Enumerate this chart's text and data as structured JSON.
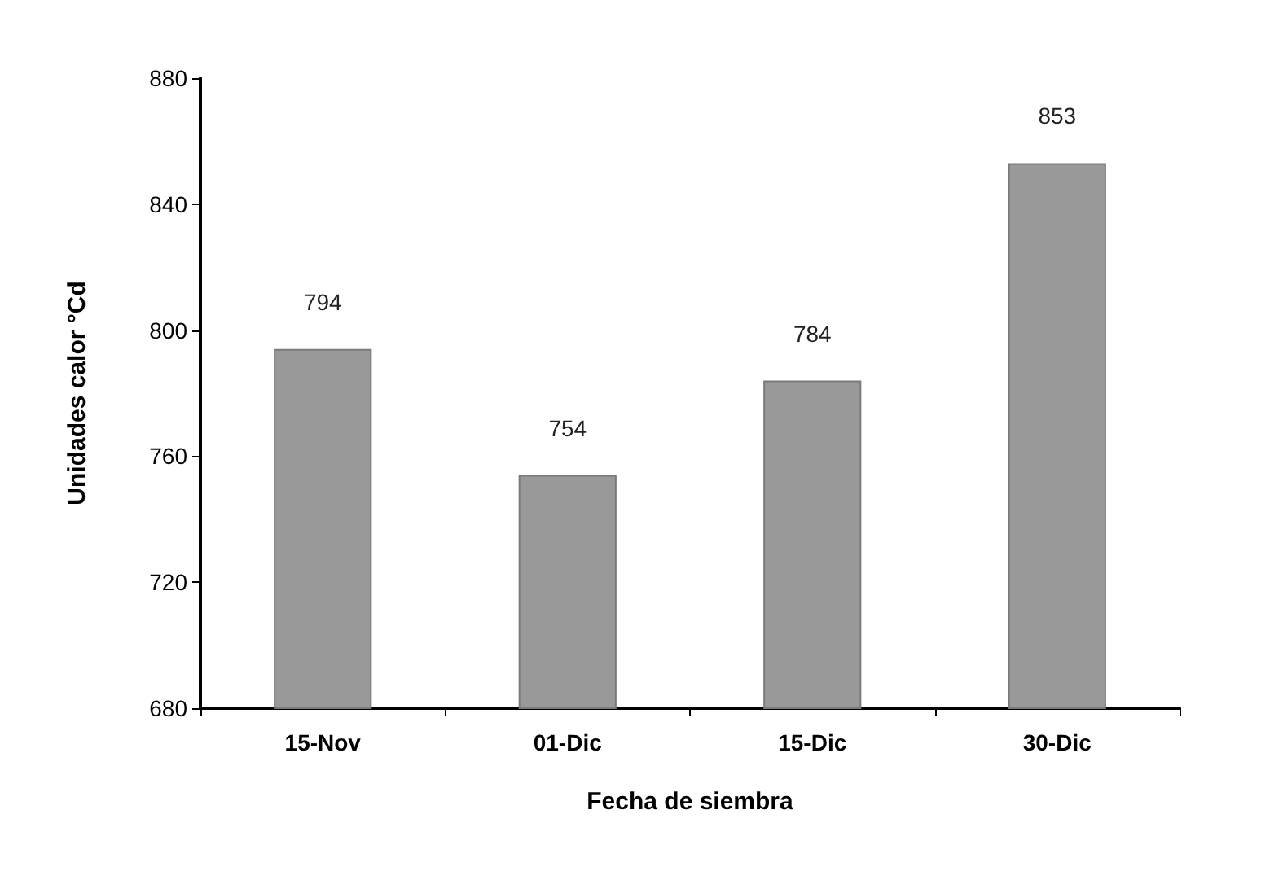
{
  "chart_data": {
    "type": "bar",
    "xlabel": "Fecha de siembra",
    "ylabel": "Unidades calor °Cd",
    "categories": [
      "15-Nov",
      "01-Dic",
      "15-Dic",
      "30-Dic"
    ],
    "values": [
      794,
      754,
      784,
      853
    ],
    "color": "#999999",
    "ylim": [
      680,
      880
    ],
    "yticks": [
      680,
      720,
      760,
      800,
      840,
      880
    ],
    "grid": false,
    "data_labels": true
  }
}
